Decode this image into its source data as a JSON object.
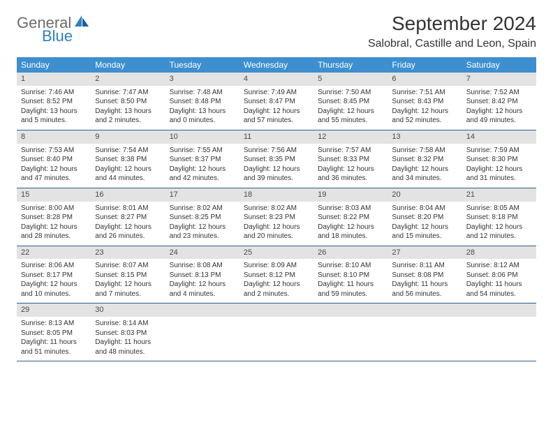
{
  "logo": {
    "general": "General",
    "blue": "Blue"
  },
  "title": "September 2024",
  "location": "Salobral, Castille and Leon, Spain",
  "colors": {
    "header_bg": "#3d8fcf",
    "header_text": "#ffffff",
    "daynum_bg": "#e3e3e3",
    "border": "#2b5f8c",
    "logo_general": "#6b6b6b",
    "logo_blue": "#2f7fbf"
  },
  "weekdays": [
    "Sunday",
    "Monday",
    "Tuesday",
    "Wednesday",
    "Thursday",
    "Friday",
    "Saturday"
  ],
  "weeks": [
    [
      {
        "n": "1",
        "sr": "Sunrise: 7:46 AM",
        "ss": "Sunset: 8:52 PM",
        "dl": "Daylight: 13 hours and 5 minutes."
      },
      {
        "n": "2",
        "sr": "Sunrise: 7:47 AM",
        "ss": "Sunset: 8:50 PM",
        "dl": "Daylight: 13 hours and 2 minutes."
      },
      {
        "n": "3",
        "sr": "Sunrise: 7:48 AM",
        "ss": "Sunset: 8:48 PM",
        "dl": "Daylight: 13 hours and 0 minutes."
      },
      {
        "n": "4",
        "sr": "Sunrise: 7:49 AM",
        "ss": "Sunset: 8:47 PM",
        "dl": "Daylight: 12 hours and 57 minutes."
      },
      {
        "n": "5",
        "sr": "Sunrise: 7:50 AM",
        "ss": "Sunset: 8:45 PM",
        "dl": "Daylight: 12 hours and 55 minutes."
      },
      {
        "n": "6",
        "sr": "Sunrise: 7:51 AM",
        "ss": "Sunset: 8:43 PM",
        "dl": "Daylight: 12 hours and 52 minutes."
      },
      {
        "n": "7",
        "sr": "Sunrise: 7:52 AM",
        "ss": "Sunset: 8:42 PM",
        "dl": "Daylight: 12 hours and 49 minutes."
      }
    ],
    [
      {
        "n": "8",
        "sr": "Sunrise: 7:53 AM",
        "ss": "Sunset: 8:40 PM",
        "dl": "Daylight: 12 hours and 47 minutes."
      },
      {
        "n": "9",
        "sr": "Sunrise: 7:54 AM",
        "ss": "Sunset: 8:38 PM",
        "dl": "Daylight: 12 hours and 44 minutes."
      },
      {
        "n": "10",
        "sr": "Sunrise: 7:55 AM",
        "ss": "Sunset: 8:37 PM",
        "dl": "Daylight: 12 hours and 42 minutes."
      },
      {
        "n": "11",
        "sr": "Sunrise: 7:56 AM",
        "ss": "Sunset: 8:35 PM",
        "dl": "Daylight: 12 hours and 39 minutes."
      },
      {
        "n": "12",
        "sr": "Sunrise: 7:57 AM",
        "ss": "Sunset: 8:33 PM",
        "dl": "Daylight: 12 hours and 36 minutes."
      },
      {
        "n": "13",
        "sr": "Sunrise: 7:58 AM",
        "ss": "Sunset: 8:32 PM",
        "dl": "Daylight: 12 hours and 34 minutes."
      },
      {
        "n": "14",
        "sr": "Sunrise: 7:59 AM",
        "ss": "Sunset: 8:30 PM",
        "dl": "Daylight: 12 hours and 31 minutes."
      }
    ],
    [
      {
        "n": "15",
        "sr": "Sunrise: 8:00 AM",
        "ss": "Sunset: 8:28 PM",
        "dl": "Daylight: 12 hours and 28 minutes."
      },
      {
        "n": "16",
        "sr": "Sunrise: 8:01 AM",
        "ss": "Sunset: 8:27 PM",
        "dl": "Daylight: 12 hours and 26 minutes."
      },
      {
        "n": "17",
        "sr": "Sunrise: 8:02 AM",
        "ss": "Sunset: 8:25 PM",
        "dl": "Daylight: 12 hours and 23 minutes."
      },
      {
        "n": "18",
        "sr": "Sunrise: 8:02 AM",
        "ss": "Sunset: 8:23 PM",
        "dl": "Daylight: 12 hours and 20 minutes."
      },
      {
        "n": "19",
        "sr": "Sunrise: 8:03 AM",
        "ss": "Sunset: 8:22 PM",
        "dl": "Daylight: 12 hours and 18 minutes."
      },
      {
        "n": "20",
        "sr": "Sunrise: 8:04 AM",
        "ss": "Sunset: 8:20 PM",
        "dl": "Daylight: 12 hours and 15 minutes."
      },
      {
        "n": "21",
        "sr": "Sunrise: 8:05 AM",
        "ss": "Sunset: 8:18 PM",
        "dl": "Daylight: 12 hours and 12 minutes."
      }
    ],
    [
      {
        "n": "22",
        "sr": "Sunrise: 8:06 AM",
        "ss": "Sunset: 8:17 PM",
        "dl": "Daylight: 12 hours and 10 minutes."
      },
      {
        "n": "23",
        "sr": "Sunrise: 8:07 AM",
        "ss": "Sunset: 8:15 PM",
        "dl": "Daylight: 12 hours and 7 minutes."
      },
      {
        "n": "24",
        "sr": "Sunrise: 8:08 AM",
        "ss": "Sunset: 8:13 PM",
        "dl": "Daylight: 12 hours and 4 minutes."
      },
      {
        "n": "25",
        "sr": "Sunrise: 8:09 AM",
        "ss": "Sunset: 8:12 PM",
        "dl": "Daylight: 12 hours and 2 minutes."
      },
      {
        "n": "26",
        "sr": "Sunrise: 8:10 AM",
        "ss": "Sunset: 8:10 PM",
        "dl": "Daylight: 11 hours and 59 minutes."
      },
      {
        "n": "27",
        "sr": "Sunrise: 8:11 AM",
        "ss": "Sunset: 8:08 PM",
        "dl": "Daylight: 11 hours and 56 minutes."
      },
      {
        "n": "28",
        "sr": "Sunrise: 8:12 AM",
        "ss": "Sunset: 8:06 PM",
        "dl": "Daylight: 11 hours and 54 minutes."
      }
    ],
    [
      {
        "n": "29",
        "sr": "Sunrise: 8:13 AM",
        "ss": "Sunset: 8:05 PM",
        "dl": "Daylight: 11 hours and 51 minutes."
      },
      {
        "n": "30",
        "sr": "Sunrise: 8:14 AM",
        "ss": "Sunset: 8:03 PM",
        "dl": "Daylight: 11 hours and 48 minutes."
      },
      {
        "n": "",
        "sr": "",
        "ss": "",
        "dl": ""
      },
      {
        "n": "",
        "sr": "",
        "ss": "",
        "dl": ""
      },
      {
        "n": "",
        "sr": "",
        "ss": "",
        "dl": ""
      },
      {
        "n": "",
        "sr": "",
        "ss": "",
        "dl": ""
      },
      {
        "n": "",
        "sr": "",
        "ss": "",
        "dl": ""
      }
    ]
  ]
}
